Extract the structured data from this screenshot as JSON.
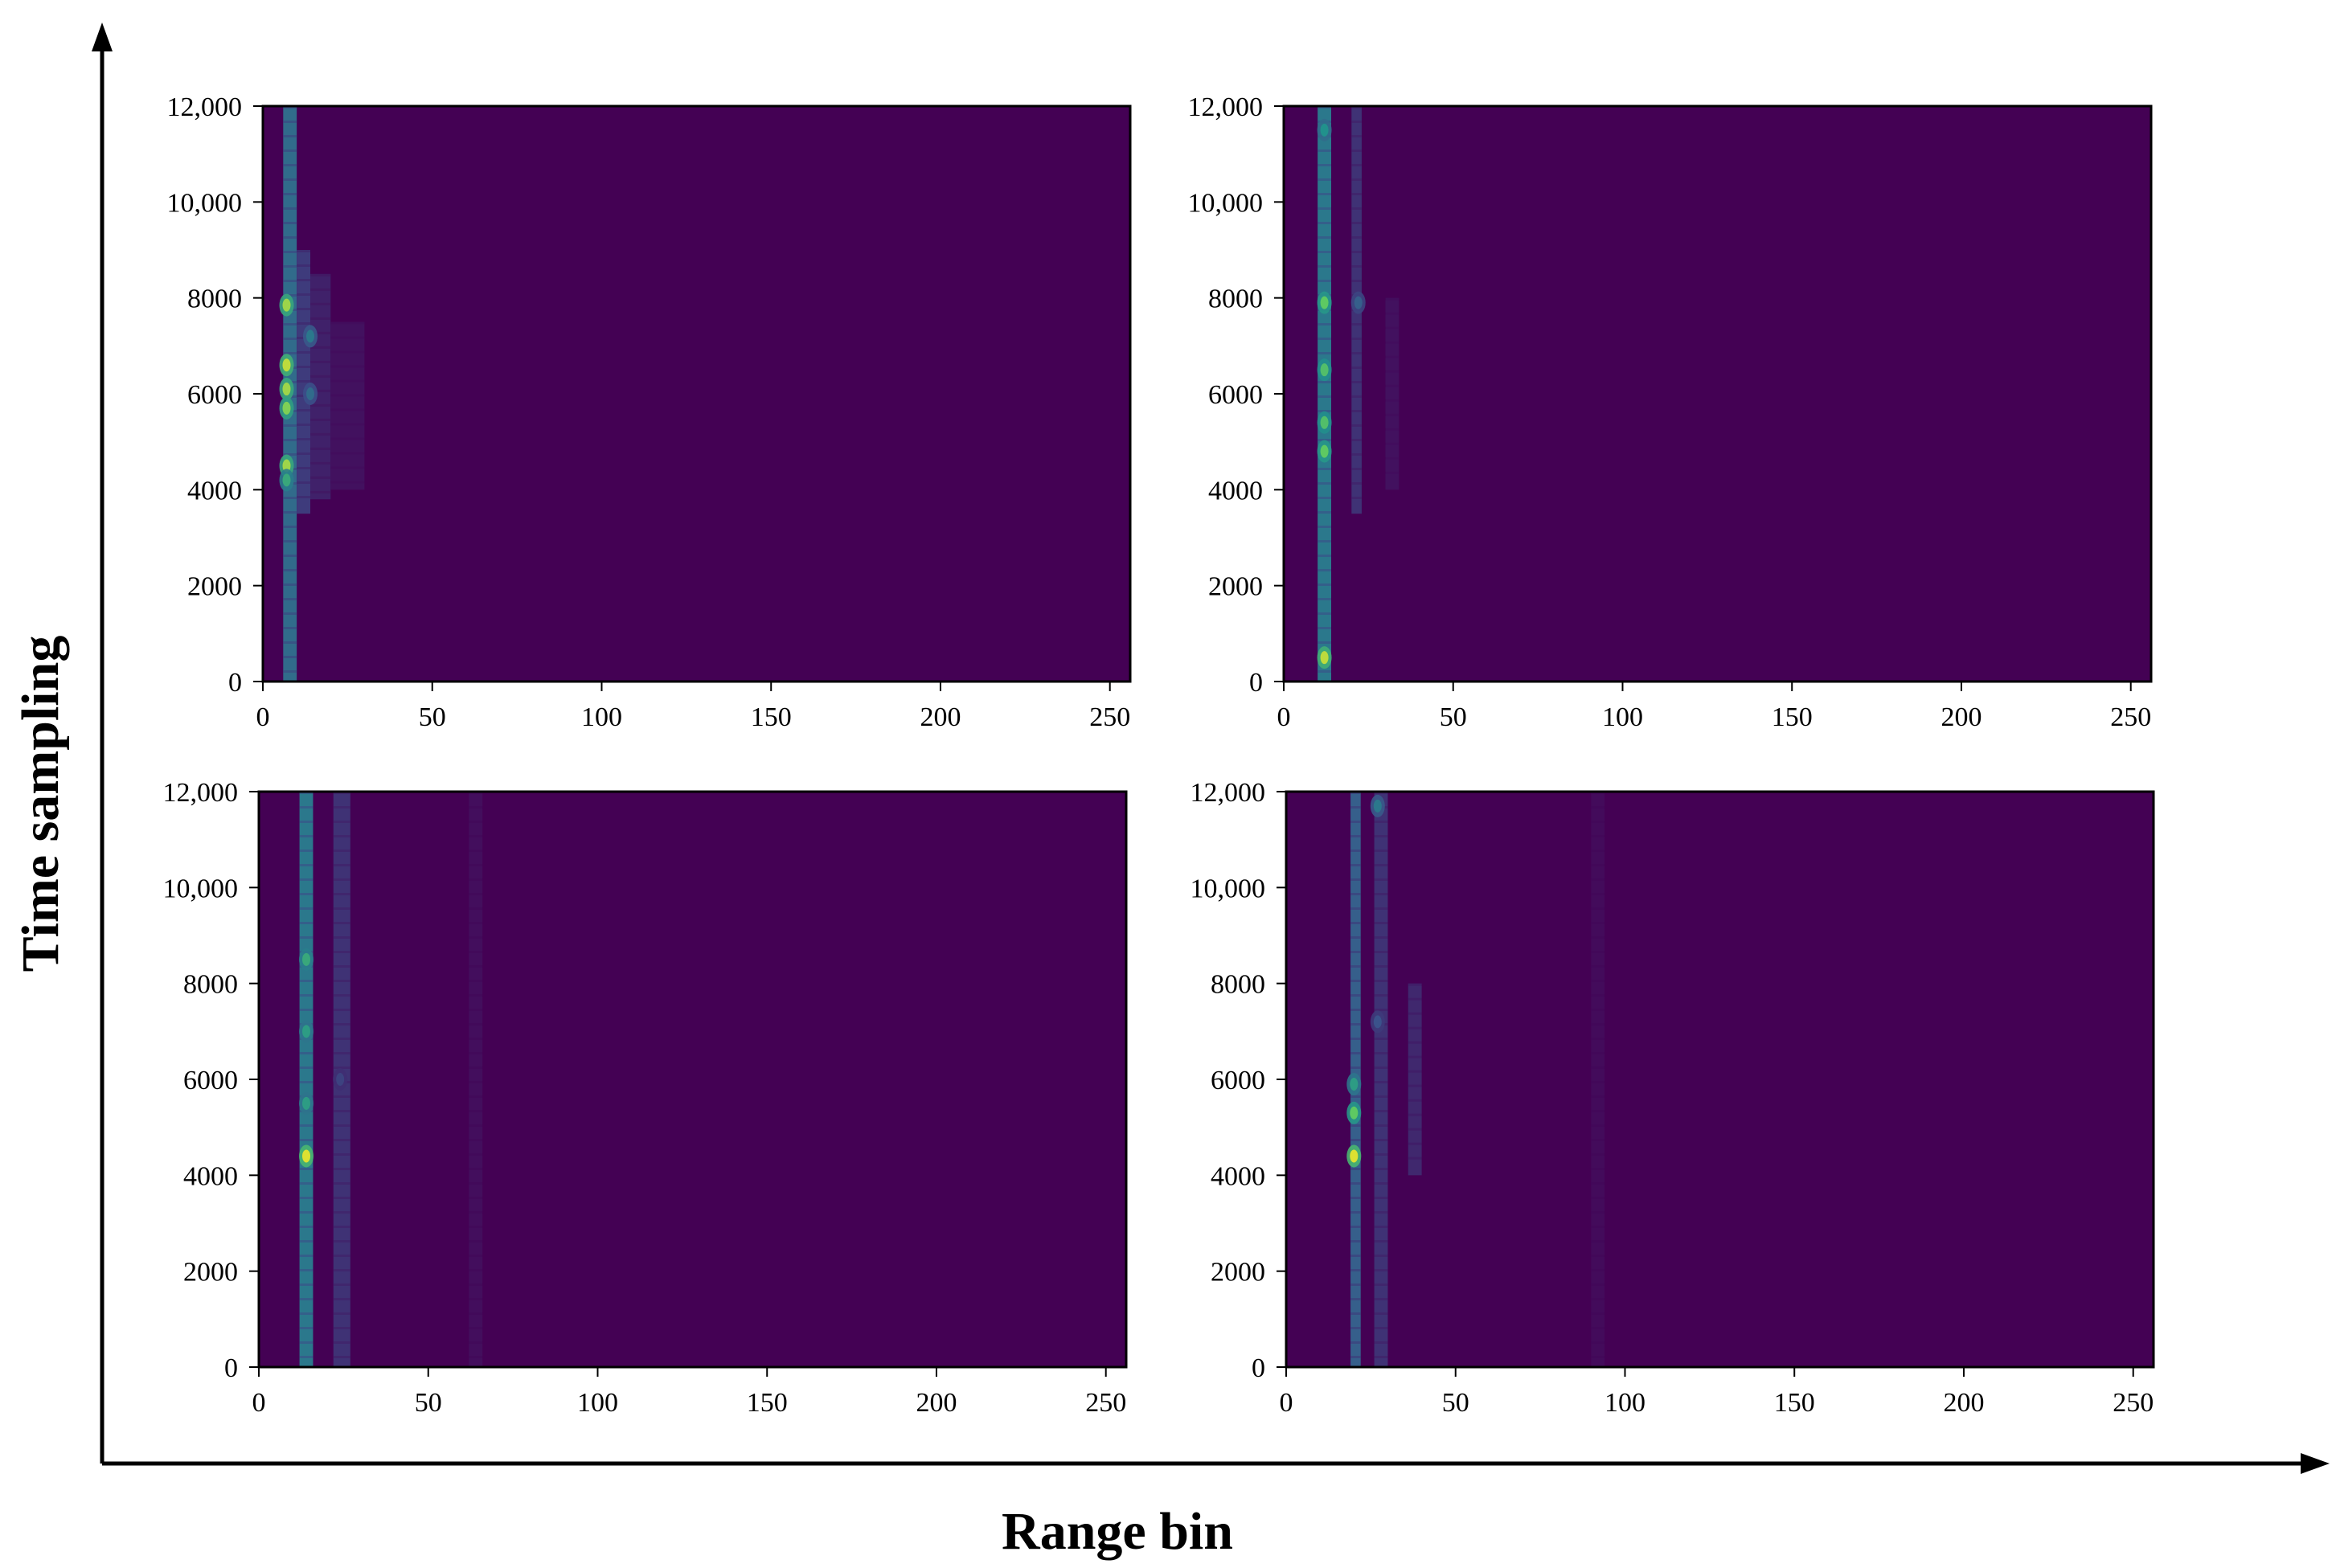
{
  "figure": {
    "xlabel": "Range bin",
    "ylabel": "Time sampling"
  },
  "colors": {
    "background": "#440154",
    "colormap": "viridis",
    "axis": "#000000"
  },
  "chart_data": [
    {
      "type": "heatmap",
      "panel": "top-left",
      "xlim": [
        0,
        256
      ],
      "ylim": [
        0,
        12000
      ],
      "xticks": [
        0,
        50,
        100,
        150,
        200,
        250
      ],
      "yticks": [
        0,
        2000,
        4000,
        6000,
        8000,
        10000,
        12000
      ],
      "xtick_labels": [
        "0",
        "50",
        "100",
        "150",
        "200",
        "250"
      ],
      "ytick_labels": [
        "0",
        "2000",
        "4000",
        "6000",
        "8000",
        "10,000",
        "12,000"
      ],
      "colormap": "viridis",
      "bands": [
        {
          "x": [
            6,
            10
          ],
          "y": [
            0,
            12000
          ],
          "intensity": 0.35
        },
        {
          "x": [
            10,
            14
          ],
          "y": [
            3500,
            9000
          ],
          "intensity": 0.18
        },
        {
          "x": [
            14,
            20
          ],
          "y": [
            3800,
            8500
          ],
          "intensity": 0.1
        },
        {
          "x": [
            20,
            30
          ],
          "y": [
            4000,
            7500
          ],
          "intensity": 0.05
        }
      ],
      "hotspots": [
        {
          "x": 7,
          "y": 7850,
          "intensity": 0.85
        },
        {
          "x": 7,
          "y": 6600,
          "intensity": 0.9
        },
        {
          "x": 7,
          "y": 6100,
          "intensity": 0.85
        },
        {
          "x": 7,
          "y": 5700,
          "intensity": 0.8
        },
        {
          "x": 7,
          "y": 4500,
          "intensity": 0.85
        },
        {
          "x": 7,
          "y": 4200,
          "intensity": 0.6
        },
        {
          "x": 14,
          "y": 7200,
          "intensity": 0.4
        },
        {
          "x": 14,
          "y": 6000,
          "intensity": 0.35
        }
      ]
    },
    {
      "type": "heatmap",
      "panel": "top-right",
      "xlim": [
        0,
        256
      ],
      "ylim": [
        0,
        12000
      ],
      "xticks": [
        0,
        50,
        100,
        150,
        200,
        250
      ],
      "yticks": [
        0,
        2000,
        4000,
        6000,
        8000,
        10000,
        12000
      ],
      "xtick_labels": [
        "0",
        "50",
        "100",
        "150",
        "200",
        "250"
      ],
      "ytick_labels": [
        "0",
        "2000",
        "4000",
        "6000",
        "8000",
        "10,000",
        "12,000"
      ],
      "colormap": "viridis",
      "bands": [
        {
          "x": [
            10,
            14
          ],
          "y": [
            0,
            12000
          ],
          "intensity": 0.4
        },
        {
          "x": [
            20,
            23
          ],
          "y": [
            3500,
            12000
          ],
          "intensity": 0.15
        },
        {
          "x": [
            30,
            34
          ],
          "y": [
            4000,
            8000
          ],
          "intensity": 0.05
        }
      ],
      "hotspots": [
        {
          "x": 12,
          "y": 500,
          "intensity": 0.9
        },
        {
          "x": 12,
          "y": 4800,
          "intensity": 0.75
        },
        {
          "x": 12,
          "y": 5400,
          "intensity": 0.7
        },
        {
          "x": 12,
          "y": 6500,
          "intensity": 0.7
        },
        {
          "x": 12,
          "y": 7900,
          "intensity": 0.75
        },
        {
          "x": 12,
          "y": 11500,
          "intensity": 0.5
        },
        {
          "x": 22,
          "y": 7900,
          "intensity": 0.3
        }
      ]
    },
    {
      "type": "heatmap",
      "panel": "bottom-left",
      "xlim": [
        0,
        256
      ],
      "ylim": [
        0,
        12000
      ],
      "xticks": [
        0,
        50,
        100,
        150,
        200,
        250
      ],
      "yticks": [
        0,
        2000,
        4000,
        6000,
        8000,
        10000,
        12000
      ],
      "xtick_labels": [
        "0",
        "50",
        "100",
        "150",
        "200",
        "250"
      ],
      "ytick_labels": [
        "0",
        "2000",
        "4000",
        "6000",
        "8000",
        "10,000",
        "12,000"
      ],
      "colormap": "viridis",
      "bands": [
        {
          "x": [
            12,
            16
          ],
          "y": [
            0,
            12000
          ],
          "intensity": 0.4
        },
        {
          "x": [
            22,
            27
          ],
          "y": [
            0,
            12000
          ],
          "intensity": 0.15
        },
        {
          "x": [
            62,
            66
          ],
          "y": [
            0,
            12000
          ],
          "intensity": 0.04
        }
      ],
      "hotspots": [
        {
          "x": 14,
          "y": 4400,
          "intensity": 0.95
        },
        {
          "x": 14,
          "y": 5500,
          "intensity": 0.55
        },
        {
          "x": 14,
          "y": 7000,
          "intensity": 0.55
        },
        {
          "x": 14,
          "y": 8500,
          "intensity": 0.6
        },
        {
          "x": 24,
          "y": 6000,
          "intensity": 0.2
        }
      ]
    },
    {
      "type": "heatmap",
      "panel": "bottom-right",
      "xlim": [
        0,
        256
      ],
      "ylim": [
        0,
        12000
      ],
      "xticks": [
        0,
        50,
        100,
        150,
        200,
        250
      ],
      "yticks": [
        0,
        2000,
        4000,
        6000,
        8000,
        10000,
        12000
      ],
      "xtick_labels": [
        "0",
        "50",
        "100",
        "150",
        "200",
        "250"
      ],
      "ytick_labels": [
        "0",
        "2000",
        "4000",
        "6000",
        "8000",
        "10,000",
        "12,000"
      ],
      "colormap": "viridis",
      "bands": [
        {
          "x": [
            19,
            22
          ],
          "y": [
            0,
            12000
          ],
          "intensity": 0.3
        },
        {
          "x": [
            26,
            30
          ],
          "y": [
            0,
            12000
          ],
          "intensity": 0.15
        },
        {
          "x": [
            36,
            40
          ],
          "y": [
            4000,
            8000
          ],
          "intensity": 0.12
        },
        {
          "x": [
            90,
            94
          ],
          "y": [
            0,
            12000
          ],
          "intensity": 0.03
        }
      ],
      "hotspots": [
        {
          "x": 20,
          "y": 4400,
          "intensity": 0.95
        },
        {
          "x": 20,
          "y": 5300,
          "intensity": 0.75
        },
        {
          "x": 20,
          "y": 5900,
          "intensity": 0.55
        },
        {
          "x": 27,
          "y": 7200,
          "intensity": 0.25
        },
        {
          "x": 27,
          "y": 11700,
          "intensity": 0.4
        }
      ]
    }
  ]
}
